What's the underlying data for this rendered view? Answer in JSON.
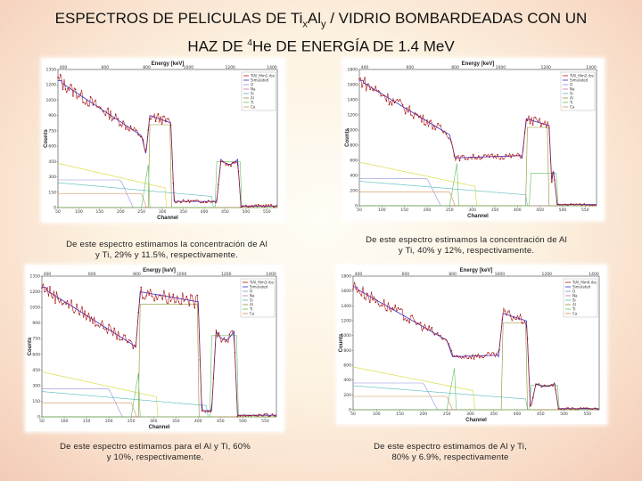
{
  "title": {
    "line1_a": "ESPECTROS DE PELICULAS DE Ti",
    "sub1": "x",
    "mid": "Al",
    "sub2": "y",
    "line1_b": " / VIDRIO BOMBARDEADAS CON UN",
    "line2_a": "HAZ DE ",
    "sup": "4",
    "line2_b": "He DE ENERGÍA DE 1.4 MeV"
  },
  "captions": {
    "c1": "De este espectro estimamos la concentración de Al y Ti, 29% y 11.5%, respectivamente.",
    "c2": "De este espectro estimamos la concentración de Al y Ti, 40% y 12%, respectivamente.",
    "c3": "De este espectro estimamos para el Al y Ti, 60% y 10%, respectivamente.",
    "c4": "De este espectro estimamos de Al y Ti, 80% y 6.9%, respectivamente"
  },
  "chart_data": [
    {
      "type": "line",
      "title": "Energy [keV]",
      "xlabel": "Channel",
      "ylabel": "Counts",
      "xlim": [
        50,
        575
      ],
      "ylim": [
        0,
        1350
      ],
      "xticks": [
        "50",
        "100",
        "150",
        "200",
        "250",
        "300",
        "350",
        "400",
        "450",
        "500",
        "550"
      ],
      "yticks": [
        0,
        150,
        300,
        450,
        600,
        750,
        900,
        1050,
        1200,
        1350
      ],
      "energy_ticks": [
        "400",
        "600",
        "800",
        "1000",
        "1200",
        "1400"
      ],
      "legend": [
        "TiAl_film1.rbs",
        "Simulated",
        "O",
        "Na",
        "Si",
        "Al",
        "Ti",
        "Ca"
      ],
      "colors": {
        "exp": "#b01818",
        "sim": "#2a2ad0",
        "O": "#9090e0",
        "Na": "#c070c0",
        "Si": "#50b8b8",
        "Al": "#909030",
        "Ti": "#60c060",
        "Ca": "#d09050",
        "yellow": "#d8d830"
      },
      "params": {
        "tiStart": 270,
        "tiEnd": 320,
        "tiLevel": 470,
        "alLevel": 900
      }
    },
    {
      "type": "line",
      "title": "Energy [keV]",
      "xlabel": "Channel",
      "ylabel": "Counts",
      "xlim": [
        50,
        575
      ],
      "ylim": [
        0,
        1800
      ],
      "xticks": [
        "50",
        "100",
        "150",
        "200",
        "250",
        "300",
        "350",
        "400",
        "450",
        "500",
        "550"
      ],
      "yticks": [
        0,
        200,
        400,
        600,
        800,
        1000,
        1200,
        1400,
        1600,
        1800
      ],
      "energy_ticks": [
        "400",
        "600",
        "800",
        "1000",
        "1200",
        "1400"
      ],
      "legend": [
        "TiAl_film2.rbs",
        "Simulated",
        "O",
        "Na",
        "Si",
        "Al",
        "Ti",
        "Ca"
      ],
      "colors": {
        "exp": "#b01818",
        "sim": "#2a2ad0",
        "O": "#9090e0",
        "Na": "#c070c0",
        "Si": "#50b8b8",
        "Al": "#909030",
        "Ti": "#60c060",
        "Ca": "#d09050",
        "yellow": "#d8d830"
      },
      "params": {
        "tiStart": 420,
        "tiEnd": 470,
        "tiLevel": 450,
        "alLevel": 1150
      }
    },
    {
      "type": "line",
      "title": "Energy [keV]",
      "xlabel": "Channel",
      "ylabel": "Counts",
      "xlim": [
        50,
        575
      ],
      "ylim": [
        0,
        1350
      ],
      "xticks": [
        "50",
        "100",
        "150",
        "200",
        "250",
        "300",
        "350",
        "400",
        "450",
        "500",
        "550"
      ],
      "yticks": [
        0,
        150,
        300,
        450,
        600,
        750,
        900,
        1050,
        1200,
        1350
      ],
      "energy_ticks": [
        "400",
        "600",
        "800",
        "1000",
        "1200",
        "1400"
      ],
      "legend": [
        "TiAl_film3.rbs",
        "Simulated",
        "O",
        "Na",
        "Si",
        "Al",
        "Ti",
        "Ca"
      ],
      "colors": {
        "exp": "#b01818",
        "sim": "#2a2ad0",
        "O": "#9090e0",
        "Na": "#c070c0",
        "Si": "#50b8b8",
        "Al": "#909030",
        "Ti": "#60c060",
        "Ca": "#d09050",
        "yellow": "#d8d830"
      },
      "params": {
        "tiStart": 270,
        "tiEnd": 400,
        "tiLevel": 820,
        "alLevel": 1200
      }
    },
    {
      "type": "line",
      "title": "Energy [keV]",
      "xlabel": "Channel",
      "ylabel": "Counts",
      "xlim": [
        50,
        575
      ],
      "ylim": [
        0,
        1800
      ],
      "xticks": [
        "50",
        "100",
        "150",
        "200",
        "250",
        "300",
        "350",
        "400",
        "450",
        "500",
        "550"
      ],
      "yticks": [
        0,
        200,
        400,
        600,
        800,
        1000,
        1200,
        1400,
        1600,
        1800
      ],
      "energy_ticks": [
        "400",
        "600",
        "800",
        "1000",
        "1200",
        "1400"
      ],
      "legend": [
        "TiAl_film4.rbs",
        "Simulated",
        "O",
        "Na",
        "Si",
        "Al",
        "Ti",
        "Ca"
      ],
      "colors": {
        "exp": "#b01818",
        "sim": "#2a2ad0",
        "O": "#9090e0",
        "Na": "#c070c0",
        "Si": "#50b8b8",
        "Al": "#909030",
        "Ti": "#60c060",
        "Ca": "#d09050",
        "yellow": "#d8d830"
      },
      "params": {
        "tiStart": 370,
        "tiEnd": 420,
        "tiLevel": 350,
        "alLevel": 1300
      }
    }
  ]
}
